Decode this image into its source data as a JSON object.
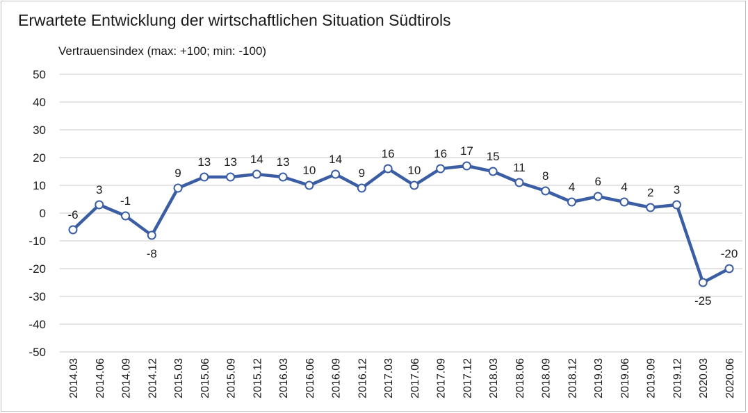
{
  "chart_data": {
    "type": "line",
    "title": "Erwartete Entwicklung der wirtschaftlichen Situation Südtirols",
    "ylabel": "Vertrauensindex (max: +100; min: -100)",
    "xlabel": "",
    "ylim": [
      -50,
      50
    ],
    "yticks": [
      50,
      40,
      30,
      20,
      10,
      0,
      -10,
      -20,
      -30,
      -40,
      -50
    ],
    "grid": true,
    "line_color": "#3a5da4",
    "categories": [
      "2014.03",
      "2014.06",
      "2014.09",
      "2014.12",
      "2015.03",
      "2015.06",
      "2015.09",
      "2015.12",
      "2016.03",
      "2016.06",
      "2016.09",
      "2016.12",
      "2017.03",
      "2017.06",
      "2017.09",
      "2017.12",
      "2018.03",
      "2018.06",
      "2018.09",
      "2018.12",
      "2019.03",
      "2019.06",
      "2019.09",
      "2019.12",
      "2020.03",
      "2020.06"
    ],
    "values": [
      -6,
      3,
      -1,
      -8,
      9,
      13,
      13,
      14,
      13,
      10,
      14,
      9,
      16,
      10,
      16,
      17,
      15,
      11,
      8,
      4,
      6,
      4,
      2,
      3,
      -25,
      -20
    ],
    "data_labels": [
      "-6",
      "3",
      "-1",
      "-8",
      "9",
      "13",
      "13",
      "14",
      "13",
      "10",
      "14",
      "9",
      "16",
      "10",
      "16",
      "17",
      "15",
      "11",
      "8",
      "4",
      "6",
      "4",
      "2",
      "3",
      "-25",
      "-20"
    ]
  }
}
